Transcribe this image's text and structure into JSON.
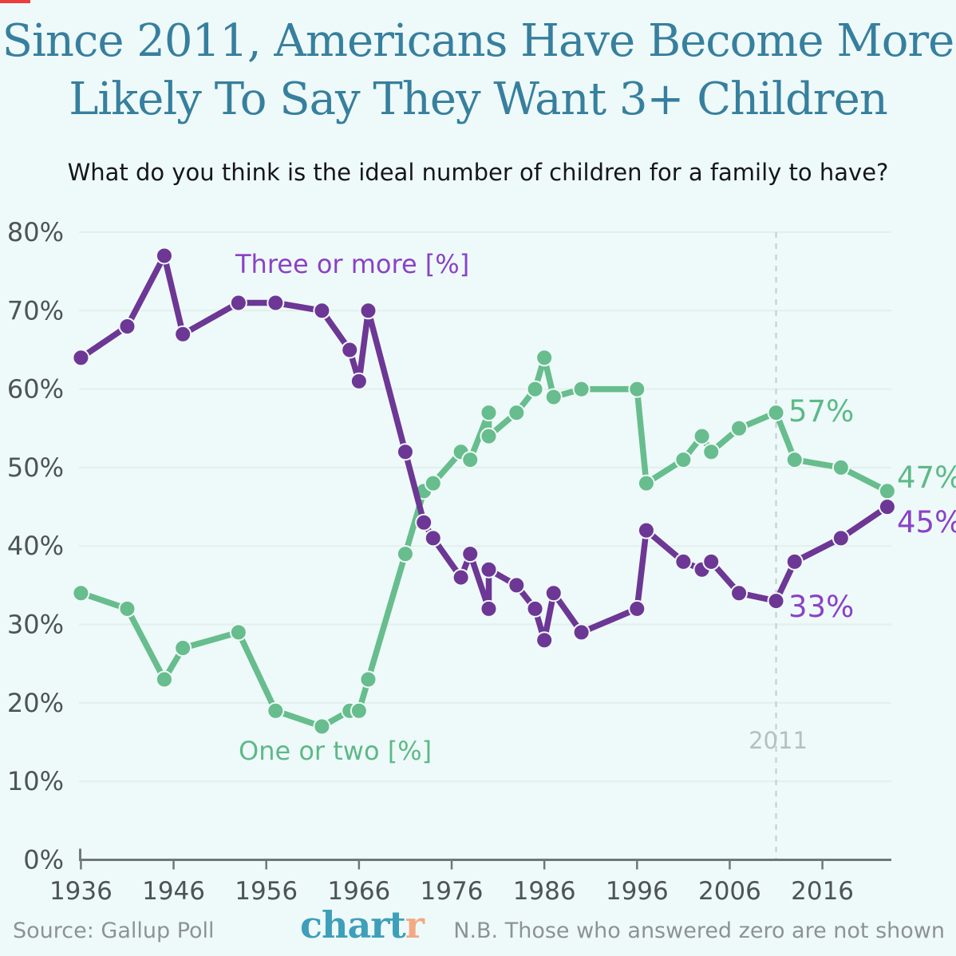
{
  "page": {
    "title_line1": "Since 2011, Americans Have Become More",
    "title_line2": "Likely To Say They Want 3+ Children",
    "subtitle": "What do you think is the ideal number of children for a family to have?"
  },
  "colors": {
    "background": "#eefaf9",
    "title_teal": "#377f9e",
    "purple_line": "#6d3795",
    "green_line": "#67bd8d",
    "purple_text": "#8a42c6",
    "green_text": "#5eb988",
    "gridline": "#e2efec",
    "axis": "#6f7779",
    "tick_label": "#4e5456",
    "reference_line": "#c3cccb",
    "reference_label": "#b6bfbf",
    "footer_gray": "#8d9393",
    "logo_teal": "#3e9fba",
    "logo_orange": "#f4a983"
  },
  "chart_data": {
    "type": "line",
    "title": "Since 2011, Americans Have Become More Likely To Say They Want 3+ Children",
    "subtitle": "What do you think is the ideal number of children for a family to have?",
    "xlabel": "",
    "ylabel": "",
    "ylim": [
      0,
      80
    ],
    "grid": true,
    "legend_position": "inline-labels",
    "x": [
      1936,
      1941,
      1945,
      1947,
      1953,
      1957,
      1962,
      1965,
      1966,
      1967,
      1971,
      1973,
      1974,
      1977,
      1978,
      1980,
      1980,
      1983,
      1985,
      1986,
      1987,
      1990,
      1996,
      1997,
      2001,
      2003,
      2004,
      2007,
      2011,
      2013,
      2018,
      2023
    ],
    "series": [
      {
        "name": "Three or more [%]",
        "color": "#6d3795",
        "values": [
          64,
          68,
          77,
          67,
          71,
          71,
          70,
          65,
          61,
          70,
          52,
          43,
          41,
          36,
          39,
          32,
          37,
          35,
          32,
          28,
          34,
          29,
          32,
          42,
          38,
          37,
          38,
          34,
          33,
          38,
          41,
          45
        ]
      },
      {
        "name": "One or two [%]",
        "color": "#67bd8d",
        "values": [
          34,
          32,
          23,
          27,
          29,
          19,
          17,
          19,
          19,
          23,
          39,
          47,
          48,
          52,
          51,
          57,
          54,
          57,
          60,
          64,
          59,
          60,
          60,
          48,
          51,
          54,
          52,
          55,
          57,
          51,
          50,
          47
        ]
      }
    ],
    "x_axis": {
      "tick_labels": [
        "1936",
        "1946",
        "1956",
        "1966",
        "1976",
        "1986",
        "1996",
        "2006",
        "2016"
      ],
      "tick_years": [
        1936,
        1946,
        1956,
        1966,
        1976,
        1986,
        1996,
        2006,
        2016
      ]
    },
    "y_axis": {
      "tick_labels": [
        "0%",
        "10%",
        "20%",
        "30%",
        "40%",
        "50%",
        "60%",
        "70%",
        "80%"
      ],
      "tick_values": [
        0,
        10,
        20,
        30,
        40,
        50,
        60,
        70,
        80
      ]
    },
    "reference_line": {
      "year": 2011,
      "label": "2011"
    },
    "annotations": [
      {
        "text": "57%",
        "series": "One or two [%]",
        "year": 2011,
        "value": 57
      },
      {
        "text": "47%",
        "series": "One or two [%]",
        "year": 2023,
        "value": 47
      },
      {
        "text": "45%",
        "series": "Three or more [%]",
        "year": 2023,
        "value": 45
      },
      {
        "text": "33%",
        "series": "Three or more [%]",
        "year": 2011,
        "value": 33
      }
    ]
  },
  "footer": {
    "source": "Source: Gallup Poll",
    "note": "N.B. Those who answered zero are not shown",
    "logo_chart": "chart",
    "logo_r": "r"
  }
}
